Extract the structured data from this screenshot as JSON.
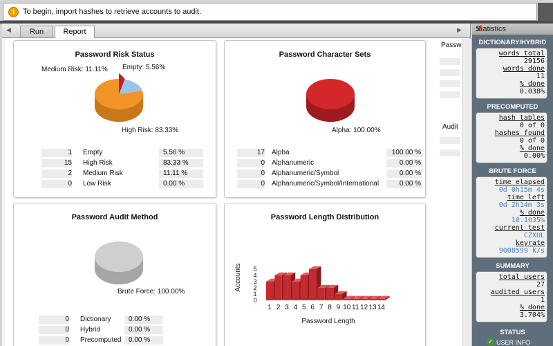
{
  "infobar": {
    "message": "To begin, import hashes to retrieve accounts to audit."
  },
  "tabs": {
    "run": "Run",
    "report": "Report"
  },
  "risk": {
    "title": "Password Risk Status",
    "labels": {
      "medium": "Medium Risk: 11.11%",
      "empty": "Empty: 5.56%",
      "high": "High Risk: 83.33%"
    },
    "rows": [
      {
        "count": "1",
        "name": "Empty",
        "pct": "5.56 %"
      },
      {
        "count": "15",
        "name": "High Risk",
        "pct": "83.33 %"
      },
      {
        "count": "2",
        "name": "Medium Risk",
        "pct": "11.11 %"
      },
      {
        "count": "0",
        "name": "Low Risk",
        "pct": "0.00 %"
      }
    ]
  },
  "charsets": {
    "title": "Password Character Sets",
    "label": "Alpha: 100.00%",
    "rows": [
      {
        "count": "17",
        "name": "Alpha",
        "pct": "100.00 %"
      },
      {
        "count": "0",
        "name": "Alphanumeric",
        "pct": "0.00 %"
      },
      {
        "count": "0",
        "name": "Alphanumeric/Symbol",
        "pct": "0.00 %"
      },
      {
        "count": "0",
        "name": "Alphanumeric/Symbol/International",
        "pct": "0.00 %"
      }
    ]
  },
  "audit": {
    "title": "Password Audit Method",
    "label": "Brute Force: 100.00%",
    "rows": [
      {
        "count": "0",
        "name": "Dictionary",
        "pct": "0.00 %"
      },
      {
        "count": "0",
        "name": "Hybrid",
        "pct": "0.00 %"
      },
      {
        "count": "0",
        "name": "Precomputed",
        "pct": "0.00 %"
      }
    ]
  },
  "length_chart_title": "Password Length Distribution",
  "chart_data": {
    "type": "bar",
    "title": "Password Length Distribution",
    "xlabel": "Password Length",
    "ylabel": "Accounts",
    "categories": [
      "1",
      "2",
      "3",
      "4",
      "5",
      "6",
      "7",
      "8",
      "9",
      "10",
      "11",
      "12",
      "13",
      "14"
    ],
    "values": [
      3,
      4,
      4,
      3,
      4,
      5,
      2,
      2,
      1,
      0,
      0,
      0,
      0,
      0
    ],
    "yticks": [
      "0",
      "1",
      "2",
      "3",
      "4",
      "5"
    ],
    "ylim": [
      0,
      5
    ]
  },
  "partial": {
    "pass": "Passw",
    "audit": "Audit"
  },
  "stats": {
    "header": "Statistics",
    "dictionary": {
      "title": "DICTIONARY/HYBRID",
      "words_total_label": "words total",
      "words_total": "29156",
      "words_done_label": "words done",
      "words_done": "11",
      "pct_done_label": "% done",
      "pct_done": "0.038%"
    },
    "precomputed": {
      "title": "PRECOMPUTED",
      "hash_tables_label": "hash tables",
      "hash_tables": "0 of 0",
      "hashes_found_label": "hashes found",
      "hashes_found": "0 of 0",
      "pct_done_label": "% done",
      "pct_done": "0.00%"
    },
    "brute": {
      "title": "BRUTE FORCE",
      "time_elapsed_label": "time elapsed",
      "time_elapsed": "0d 0h15m 4s",
      "time_left_label": "time left",
      "time_left": "0d 2h14m 3s",
      "pct_done_label": "% done",
      "pct_done": "10.1035%",
      "current_test_label": "current test",
      "current_test": "CZXUL",
      "keyrate_label": "keyrate",
      "keyrate": "9008599 k/s"
    },
    "summary": {
      "title": "SUMMARY",
      "total_users_label": "total users",
      "total_users": "27",
      "audited_users_label": "audited users",
      "audited_users": "1",
      "pct_done_label": "% done",
      "pct_done": "3.704%"
    },
    "status": {
      "title": "STATUS",
      "user_info": "USER INFO"
    }
  },
  "colors": {
    "high": "#f29528",
    "medium": "#9cc3ea",
    "empty": "#c0202a",
    "alpha": "#d3272c",
    "brute": "#cfcfcf",
    "bar": "#c42a2e"
  }
}
